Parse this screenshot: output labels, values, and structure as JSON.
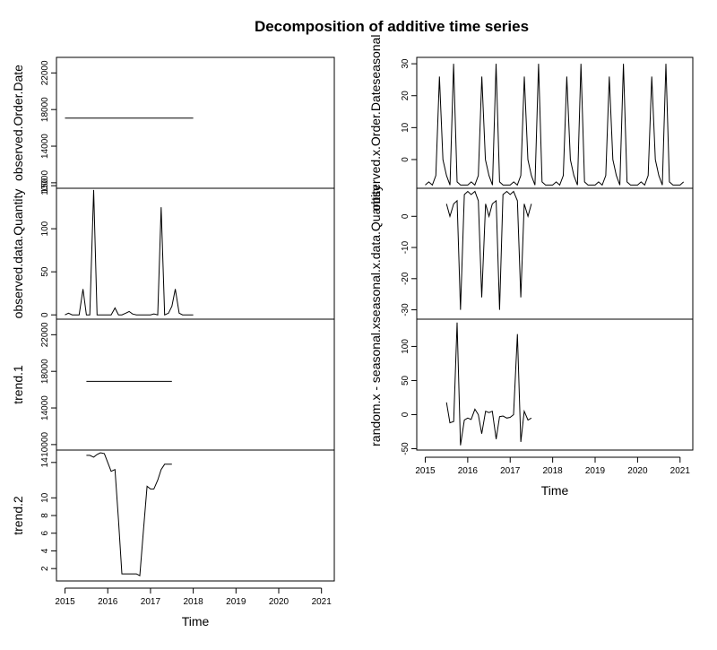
{
  "title": "Decomposition of additive time series",
  "chart_data": [
    {
      "type": "line",
      "ylabel": "observed.Order.Date",
      "xlabel": "",
      "xlim": [
        2014.8,
        2021.3
      ],
      "ylim": [
        9400,
        23700
      ],
      "yticks": [
        10000,
        14000,
        18000,
        22000
      ],
      "x": [
        2015.0,
        2018.0
      ],
      "values": [
        17060,
        17060
      ]
    },
    {
      "type": "line",
      "ylabel": "observed.data.Quantity",
      "xlabel": "",
      "xlim": [
        2014.8,
        2021.3
      ],
      "ylim": [
        -5,
        147
      ],
      "yticks": [
        0,
        50,
        100,
        150
      ],
      "x": [
        2015.0,
        2015.08,
        2015.17,
        2015.25,
        2015.33,
        2015.42,
        2015.5,
        2015.58,
        2015.67,
        2015.75,
        2015.83,
        2015.92,
        2016.0,
        2016.08,
        2016.17,
        2016.25,
        2016.33,
        2016.42,
        2016.5,
        2016.58,
        2016.67,
        2016.75,
        2016.83,
        2016.92,
        2017.0,
        2017.08,
        2017.17,
        2017.25,
        2017.33,
        2017.42,
        2017.5,
        2017.58,
        2017.67,
        2017.75,
        2017.83,
        2017.92,
        2018.0
      ],
      "values": [
        0,
        2,
        0,
        0,
        0,
        30,
        0,
        0,
        145,
        0,
        0,
        0,
        0,
        0,
        8,
        0,
        0,
        2,
        4,
        1,
        0,
        0,
        0,
        0,
        0,
        1,
        0,
        125,
        0,
        2,
        10,
        30,
        2,
        0,
        0,
        0,
        0
      ]
    },
    {
      "type": "line",
      "ylabel": "trend.1",
      "xlabel": "",
      "xlim": [
        2014.8,
        2021.3
      ],
      "ylim": [
        9400,
        23700
      ],
      "yticks": [
        10000,
        14000,
        18000,
        22000
      ],
      "x": [
        2015.5,
        2017.5
      ],
      "values": [
        16900,
        16900
      ]
    },
    {
      "type": "line",
      "ylabel": "trend.2",
      "xlabel": "Time",
      "xlim": [
        2014.8,
        2021.3
      ],
      "xticks": [
        2015,
        2016,
        2017,
        2018,
        2019,
        2020,
        2021
      ],
      "ylim": [
        0.6,
        15.4
      ],
      "yticks": [
        2,
        4,
        6,
        8,
        10,
        14
      ],
      "x": [
        2015.5,
        2015.58,
        2015.67,
        2015.75,
        2015.83,
        2015.92,
        2016.0,
        2016.08,
        2016.17,
        2016.25,
        2016.33,
        2016.42,
        2016.5,
        2016.58,
        2016.67,
        2016.75,
        2016.83,
        2016.92,
        2017.0,
        2017.08,
        2017.17,
        2017.25,
        2017.33,
        2017.42,
        2017.5
      ],
      "values": [
        14.8,
        14.8,
        14.6,
        14.9,
        15.1,
        15.0,
        14.0,
        13.0,
        13.2,
        7.5,
        1.4,
        1.4,
        1.4,
        1.4,
        1.4,
        1.2,
        6.0,
        11.3,
        11.0,
        11.0,
        12.0,
        13.2,
        13.8,
        13.8,
        13.8
      ]
    },
    {
      "type": "line",
      "ylabel": "observed.x.Order.Dateseasonal",
      "xlabel": "",
      "xlim": [
        2014.8,
        2021.3
      ],
      "ylim": [
        -9,
        32
      ],
      "yticks": [
        0,
        10,
        20,
        30
      ],
      "x": [
        2015.0,
        2015.083,
        2015.167,
        2015.25,
        2015.333,
        2015.417,
        2015.5,
        2015.583,
        2015.667,
        2015.75,
        2015.833,
        2015.917,
        2016.0,
        2016.083,
        2016.167,
        2016.25,
        2016.333,
        2016.417,
        2016.5,
        2016.583,
        2016.667,
        2016.75,
        2016.833,
        2016.917,
        2017.0,
        2017.083,
        2017.167,
        2017.25,
        2017.333,
        2017.417,
        2017.5,
        2017.583,
        2017.667,
        2017.75,
        2017.833,
        2017.917,
        2018.0,
        2018.083,
        2018.167,
        2018.25,
        2018.333,
        2018.417,
        2018.5,
        2018.583,
        2018.667,
        2018.75,
        2018.833,
        2018.917,
        2019.0,
        2019.083,
        2019.167,
        2019.25,
        2019.333,
        2019.417,
        2019.5,
        2019.583,
        2019.667,
        2019.75,
        2019.833,
        2019.917,
        2020.0,
        2020.083,
        2020.167,
        2020.25,
        2020.333,
        2020.417,
        2020.5,
        2020.583,
        2020.667,
        2020.75,
        2020.833,
        2020.917,
        2021.0,
        2021.083
      ],
      "values": [
        -8,
        -7,
        -8,
        -5,
        26,
        0,
        -5,
        -8,
        30,
        -7,
        -8,
        -8,
        -8,
        -7,
        -8,
        -5,
        26,
        0,
        -5,
        -8,
        30,
        -7,
        -8,
        -8,
        -8,
        -7,
        -8,
        -5,
        26,
        0,
        -5,
        -8,
        30,
        -7,
        -8,
        -8,
        -8,
        -7,
        -8,
        -5,
        26,
        0,
        -5,
        -8,
        30,
        -7,
        -8,
        -8,
        -8,
        -7,
        -8,
        -5,
        26,
        0,
        -5,
        -8,
        30,
        -7,
        -8,
        -8,
        -8,
        -7,
        -8,
        -5,
        26,
        0,
        -5,
        -8,
        30,
        -7,
        -8,
        -8,
        -8,
        -7
      ]
    },
    {
      "type": "line",
      "ylabel": "seasonal.x.data.Quantity",
      "xlabel": "",
      "xlim": [
        2014.8,
        2021.3
      ],
      "ylim": [
        -33,
        9
      ],
      "yticks": [
        -30,
        -20,
        -10,
        0
      ],
      "x": [
        2015.5,
        2015.58,
        2015.67,
        2015.75,
        2015.83,
        2015.92,
        2016.0,
        2016.08,
        2016.17,
        2016.25,
        2016.33,
        2016.42,
        2016.5,
        2016.58,
        2016.67,
        2016.75,
        2016.83,
        2016.92,
        2017.0,
        2017.08,
        2017.17,
        2017.25,
        2017.33,
        2017.42,
        2017.5
      ],
      "values": [
        4,
        0,
        4,
        5,
        -30,
        7,
        8,
        7,
        8,
        5,
        -26,
        4,
        0,
        4,
        5,
        -30,
        7,
        8,
        7,
        8,
        5,
        -26,
        4,
        0,
        4
      ]
    },
    {
      "type": "line",
      "ylabel": "random.x - seasonal.x",
      "xlabel": "Time",
      "xlim": [
        2014.8,
        2021.3
      ],
      "xticks": [
        2015,
        2016,
        2017,
        2018,
        2019,
        2020,
        2021
      ],
      "ylim": [
        -52,
        140
      ],
      "yticks": [
        -50,
        0,
        50,
        100
      ],
      "x": [
        2015.5,
        2015.58,
        2015.67,
        2015.75,
        2015.83,
        2015.92,
        2016.0,
        2016.08,
        2016.17,
        2016.25,
        2016.33,
        2016.42,
        2016.5,
        2016.58,
        2016.67,
        2016.75,
        2016.83,
        2016.92,
        2017.0,
        2017.08,
        2017.17,
        2017.25,
        2017.33,
        2017.42,
        2017.5
      ],
      "values": [
        18,
        -12,
        -10,
        135,
        -45,
        -8,
        -5,
        -7,
        8,
        0,
        -28,
        5,
        3,
        5,
        -36,
        -3,
        -2,
        -5,
        -4,
        0,
        118,
        -40,
        5,
        -8,
        -5
      ]
    }
  ]
}
